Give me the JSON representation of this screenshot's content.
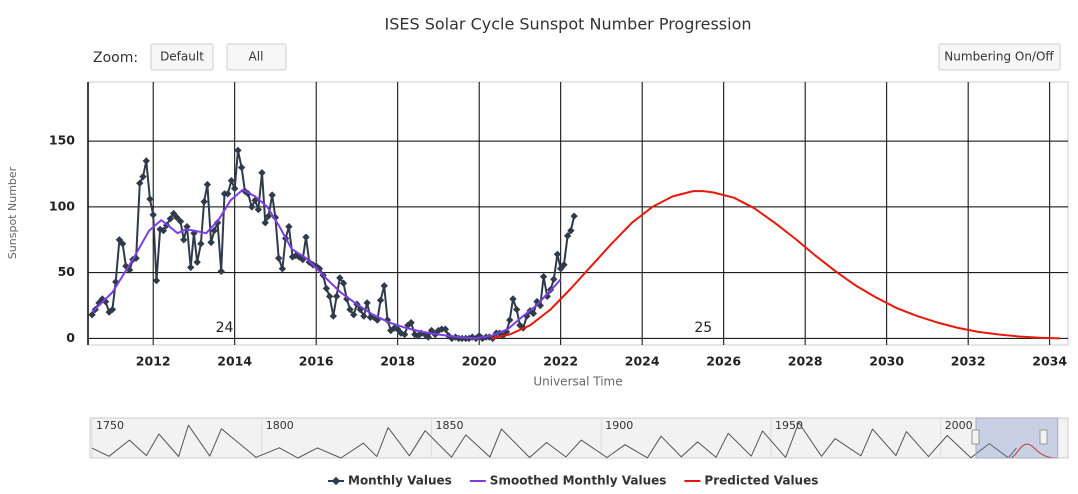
{
  "chart_data": {
    "type": "line",
    "title": "ISES Solar Cycle Sunspot Number Progression",
    "zoom_label": "Zoom:",
    "buttons": [
      "Default",
      "All",
      "Numbering On/Off"
    ],
    "y_label": "Sunspot Number",
    "x_label": "Universal Time",
    "xlim": [
      2010.4,
      2034.45
    ],
    "xticks": [
      2012,
      2014,
      2016,
      2018,
      2020,
      2022,
      2024,
      2026,
      2028,
      2030,
      2032,
      2034
    ],
    "ylim": [
      -5,
      195
    ],
    "yticks": [
      0,
      50,
      100,
      150
    ],
    "grid": true,
    "legend": "bottom",
    "annotations": [
      {
        "text": "24",
        "x": 2013.75,
        "y": 8
      },
      {
        "text": "25",
        "x": 2025.5,
        "y": 8
      }
    ],
    "series": [
      {
        "name": "Monthly Values",
        "color": "#2f3a4a",
        "marker": "diamond",
        "x": [
          2010.5,
          2010.58,
          2010.67,
          2010.75,
          2010.83,
          2010.92,
          2011.0,
          2011.08,
          2011.17,
          2011.25,
          2011.33,
          2011.42,
          2011.5,
          2011.58,
          2011.67,
          2011.75,
          2011.83,
          2011.92,
          2012.0,
          2012.08,
          2012.17,
          2012.25,
          2012.33,
          2012.42,
          2012.5,
          2012.58,
          2012.67,
          2012.75,
          2012.83,
          2012.92,
          2013.0,
          2013.08,
          2013.17,
          2013.25,
          2013.33,
          2013.42,
          2013.5,
          2013.58,
          2013.67,
          2013.75,
          2013.83,
          2013.92,
          2014.0,
          2014.08,
          2014.17,
          2014.25,
          2014.33,
          2014.42,
          2014.5,
          2014.58,
          2014.67,
          2014.75,
          2014.83,
          2014.92,
          2015.0,
          2015.08,
          2015.17,
          2015.25,
          2015.33,
          2015.42,
          2015.5,
          2015.58,
          2015.67,
          2015.75,
          2015.83,
          2015.92,
          2016.0,
          2016.08,
          2016.17,
          2016.25,
          2016.33,
          2016.42,
          2016.5,
          2016.58,
          2016.67,
          2016.75,
          2016.83,
          2016.92,
          2017.0,
          2017.08,
          2017.17,
          2017.25,
          2017.33,
          2017.42,
          2017.5,
          2017.58,
          2017.67,
          2017.75,
          2017.83,
          2017.92,
          2018.0,
          2018.08,
          2018.17,
          2018.25,
          2018.33,
          2018.42,
          2018.5,
          2018.58,
          2018.67,
          2018.75,
          2018.83,
          2018.92,
          2019.0,
          2019.08,
          2019.17,
          2019.25,
          2019.33,
          2019.42,
          2019.5,
          2019.58,
          2019.67,
          2019.75,
          2019.83,
          2019.92,
          2020.0,
          2020.08,
          2020.17,
          2020.25,
          2020.33,
          2020.42,
          2020.5,
          2020.58,
          2020.67,
          2020.75,
          2020.83,
          2020.92,
          2021.0,
          2021.08,
          2021.17,
          2021.25,
          2021.33,
          2021.42,
          2021.5,
          2021.58,
          2021.67,
          2021.75,
          2021.83,
          2021.92,
          2022.0,
          2022.08,
          2022.17,
          2022.25,
          2022.33
        ],
        "values": [
          18,
          22,
          27,
          30,
          28,
          20,
          22,
          43,
          75,
          72,
          55,
          52,
          60,
          61,
          118,
          123,
          135,
          106,
          94,
          44,
          83,
          82,
          86,
          91,
          95,
          92,
          89,
          75,
          85,
          54,
          80,
          58,
          72,
          104,
          117,
          73,
          82,
          88,
          51,
          110,
          110,
          120,
          114,
          143,
          130,
          112,
          110,
          100,
          105,
          98,
          126,
          88,
          93,
          109,
          92,
          61,
          53,
          76,
          85,
          62,
          63,
          62,
          60,
          77,
          58,
          56,
          55,
          53,
          48,
          38,
          32,
          17,
          32,
          46,
          42,
          30,
          22,
          18,
          26,
          22,
          17,
          27,
          16,
          16,
          14,
          29,
          40,
          14,
          6,
          8,
          7,
          4,
          3,
          10,
          12,
          3,
          2,
          4,
          3,
          1,
          6,
          3,
          6,
          7,
          7,
          2,
          0,
          1,
          0,
          0,
          0,
          0,
          1,
          0,
          2,
          0,
          1,
          1,
          0,
          4,
          4,
          2,
          5,
          14,
          30,
          22,
          10,
          8,
          17,
          21,
          19,
          28,
          25,
          47,
          32,
          37,
          45,
          64,
          53,
          56,
          78,
          82,
          93
        ]
      },
      {
        "name": "Smoothed Monthly Values",
        "color": "#7b3fe4",
        "x": [
          2010.5,
          2011.0,
          2011.5,
          2011.9,
          2012.2,
          2012.4,
          2012.6,
          2012.8,
          2013.0,
          2013.3,
          2013.6,
          2013.9,
          2014.2,
          2014.5,
          2014.8,
          2015.1,
          2015.4,
          2015.8,
          2016.2,
          2016.6,
          2017.0,
          2017.4,
          2017.8,
          2018.2,
          2018.6,
          2019.0,
          2019.5,
          2019.9,
          2020.3,
          2020.7,
          2021.0,
          2021.4,
          2021.8,
          2022.0
        ],
        "values": [
          20,
          35,
          60,
          82,
          90,
          85,
          80,
          83,
          82,
          80,
          90,
          105,
          113,
          108,
          100,
          85,
          68,
          60,
          47,
          35,
          26,
          18,
          12,
          8,
          5,
          3,
          1,
          0,
          2,
          7,
          15,
          25,
          38,
          45
        ]
      },
      {
        "name": "Predicted Values",
        "color": "#e8190a",
        "x": [
          2020.3,
          2020.75,
          2021.25,
          2021.75,
          2022.25,
          2022.75,
          2023.25,
          2023.75,
          2024.25,
          2024.75,
          2025.25,
          2025.5,
          2025.75,
          2026.25,
          2026.75,
          2027.25,
          2027.75,
          2028.25,
          2028.75,
          2029.25,
          2029.75,
          2030.25,
          2030.75,
          2031.25,
          2031.75,
          2032.25,
          2032.75,
          2033.25,
          2033.75,
          2034.25
        ],
        "values": [
          0,
          3,
          10,
          22,
          38,
          55,
          72,
          88,
          100,
          108,
          112,
          112,
          111,
          107,
          99,
          88,
          76,
          63,
          51,
          40,
          31,
          23,
          17,
          12,
          8,
          5,
          3,
          1.5,
          0.5,
          0
        ]
      }
    ],
    "navigator": {
      "xlim": [
        1749.4,
        2037.5
      ],
      "ylim": [
        0,
        290
      ],
      "xticks": [
        1750,
        1800,
        1850,
        1900,
        1950,
        2000
      ],
      "color": "#555555",
      "x": [
        1750,
        1755,
        1761,
        1766,
        1769.7,
        1775.5,
        1778.4,
        1784.7,
        1788.1,
        1798.3,
        1805.2,
        1810.6,
        1816.4,
        1823.3,
        1829.9,
        1833.9,
        1837.2,
        1843.5,
        1848.1,
        1855.9,
        1860.1,
        1867.2,
        1870.6,
        1878.9,
        1883.9,
        1889.6,
        1894.1,
        1901.7,
        1907,
        1913.6,
        1917.6,
        1923.6,
        1928.4,
        1933.8,
        1937.4,
        1944.2,
        1947.5,
        1954.3,
        1958.2,
        1964.9,
        1968.9,
        1976.5,
        1979.9,
        1986.8,
        1989.9,
        1996.4,
        2001.9,
        2008.9,
        2014.3,
        2019.9,
        2022.3
      ],
      "values": [
        80,
        14,
        144,
        19,
        193,
        12,
        264,
        15,
        235,
        6,
        82,
        0,
        81,
        0,
        119,
        12,
        245,
        18,
        220,
        7,
        186,
        8,
        234,
        4,
        125,
        9,
        144,
        4,
        107,
        2,
        176,
        9,
        130,
        6,
        199,
        15,
        218,
        5,
        285,
        14,
        156,
        18,
        233,
        20,
        213,
        11,
        181,
        2,
        116,
        2,
        80
      ]
    }
  }
}
